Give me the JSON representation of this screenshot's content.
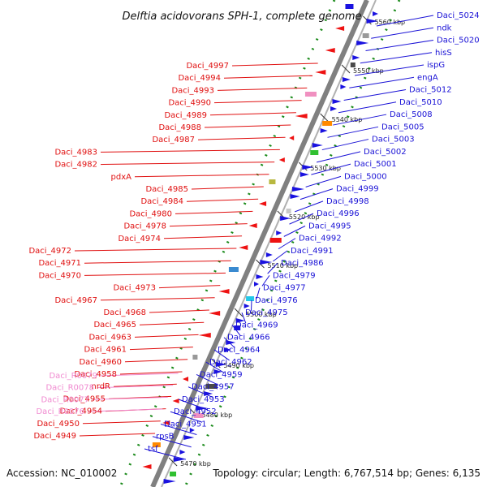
{
  "title": "Delftia acidovorans SPH-1, complete genome",
  "footer": {
    "accession": "Accession: NC_010002",
    "topology": "Topology: circular; Length: 6,767,514 bp; Genes: 6,135"
  },
  "colors": {
    "forward_label": "#1a12d6",
    "reverse_label": "#e01010",
    "rna_label": "#f08ad0",
    "forward_gene": "#1a12e0",
    "reverse_gene": "#ee1212",
    "axis": "#808080",
    "tick": "#1a8a1a"
  },
  "ticks": [
    "5560 kbp",
    "5550 kbp",
    "5540 kbp",
    "5530 kbp",
    "5520 kbp",
    "5510 kbp",
    "5500 kbp",
    "5490 kbp",
    "5480 kbp",
    "5470 kbp"
  ],
  "forward_genes": [
    "Daci_5024",
    "ndk",
    "Daci_5020",
    "hisS",
    "ispG",
    "engA",
    "Daci_5012",
    "Daci_5010",
    "Daci_5008",
    "Daci_5005",
    "Daci_5003",
    "Daci_5002",
    "Daci_5001",
    "Daci_5000",
    "Daci_4999",
    "Daci_4998",
    "Daci_4996",
    "Daci_4995",
    "Daci_4992",
    "Daci_4991",
    "Daci_4986",
    "Daci_4979",
    "Daci_4977",
    "Daci_4976",
    "Daci_4975",
    "Daci_4969",
    "Daci_4966",
    "Daci_4964",
    "Daci_4962",
    "Daci_4959",
    "Daci_4957",
    "Daci_4953",
    "Daci_4952",
    "Daci_4951",
    "rpsB",
    "tsf"
  ],
  "reverse_genes": [
    "Daci_4997",
    "Daci_4994",
    "Daci_4993",
    "Daci_4990",
    "Daci_4989",
    "Daci_4988",
    "Daci_4987",
    "Daci_4983",
    "Daci_4982",
    "pdxA",
    "Daci_4985",
    "Daci_4984",
    "Daci_4980",
    "Daci_4978",
    "Daci_4974",
    "Daci_4972",
    "Daci_4971",
    "Daci_4970",
    "Daci_4973",
    "Daci_4967",
    "Daci_4968",
    "Daci_4965",
    "Daci_4963",
    "Daci_4961",
    "Daci_4960",
    "Daci_4958",
    "nrdR",
    "Daci_4955",
    "Daci_4954",
    "Daci_4950",
    "Daci_4949"
  ],
  "rna_genes": [
    "Daci_R0079",
    "Daci_R0078",
    "Daci_R0077",
    "Daci_R0076"
  ]
}
